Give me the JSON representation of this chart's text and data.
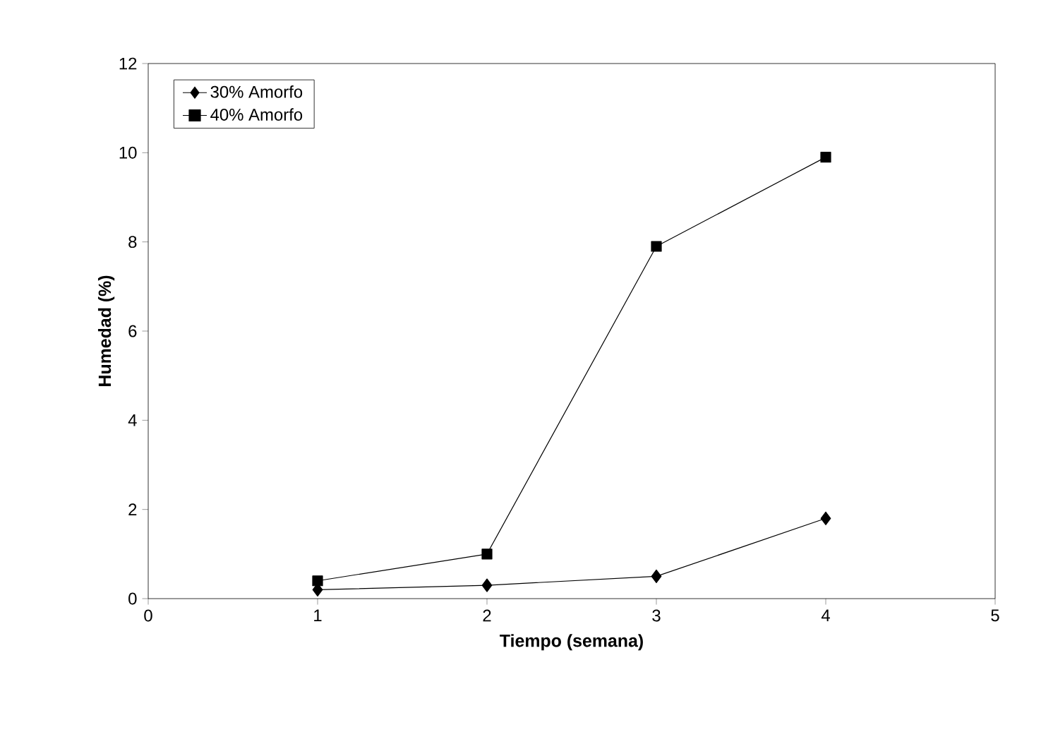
{
  "chart_data": {
    "type": "line",
    "xlabel": "Tiempo (semana)",
    "ylabel": "Humedad (%)",
    "x": [
      1,
      2,
      3,
      4
    ],
    "series": [
      {
        "name": "30% Amorfo",
        "color": "#000000",
        "marker": "diamond",
        "values": [
          0.2,
          0.3,
          0.5,
          1.8
        ]
      },
      {
        "name": "40% Amorfo",
        "color": "#000000",
        "marker": "square",
        "values": [
          0.4,
          1.0,
          7.9,
          9.9
        ]
      }
    ],
    "xlim": [
      0,
      5
    ],
    "xticks": [
      0,
      1,
      2,
      3,
      4,
      5
    ],
    "ylim": [
      0,
      12
    ],
    "yticks": [
      0,
      2,
      4,
      6,
      8,
      10,
      12
    ],
    "grid": false,
    "legend": "top left",
    "line_style": "solid"
  }
}
